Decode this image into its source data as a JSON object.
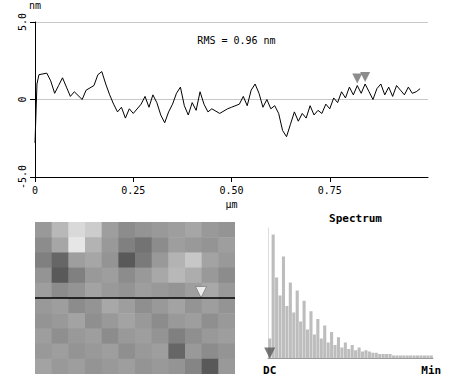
{
  "chart_data": [
    {
      "type": "line",
      "annotation": "RMS = 0.96 nm",
      "y_label": "nm",
      "x_label": "μm",
      "color": "#000000",
      "x": [
        0,
        0.005,
        0.01,
        0.03,
        0.04,
        0.05,
        0.06,
        0.07,
        0.08,
        0.09,
        0.1,
        0.12,
        0.13,
        0.15,
        0.16,
        0.17,
        0.18,
        0.19,
        0.2,
        0.21,
        0.22,
        0.23,
        0.24,
        0.25,
        0.27,
        0.28,
        0.29,
        0.3,
        0.31,
        0.32,
        0.33,
        0.34,
        0.35,
        0.36,
        0.37,
        0.38,
        0.39,
        0.4,
        0.41,
        0.42,
        0.43,
        0.44,
        0.45,
        0.47,
        0.49,
        0.5,
        0.52,
        0.53,
        0.54,
        0.55,
        0.56,
        0.57,
        0.58,
        0.59,
        0.6,
        0.61,
        0.62,
        0.63,
        0.64,
        0.65,
        0.66,
        0.67,
        0.68,
        0.69,
        0.7,
        0.71,
        0.72,
        0.73,
        0.74,
        0.75,
        0.76,
        0.77,
        0.78,
        0.79,
        0.8,
        0.81,
        0.82,
        0.83,
        0.84,
        0.85,
        0.86,
        0.87,
        0.88,
        0.89,
        0.9,
        0.91,
        0.92,
        0.93,
        0.94,
        0.95,
        0.96,
        0.97,
        0.98
      ],
      "values": [
        -2.8,
        1.0,
        1.6,
        1.7,
        1.2,
        0.4,
        0.9,
        1.4,
        0.8,
        0.2,
        0.5,
        0.0,
        0.6,
        0.9,
        1.6,
        1.8,
        1.0,
        0.3,
        -0.3,
        -0.8,
        -0.5,
        -1.2,
        -0.6,
        -0.9,
        -0.3,
        0.2,
        -0.5,
        0.3,
        -0.2,
        -1.0,
        -1.5,
        -0.8,
        -0.3,
        0.4,
        0.8,
        -0.4,
        -1.0,
        -0.2,
        -0.7,
        0.5,
        -0.3,
        -0.8,
        -0.6,
        -0.9,
        -0.6,
        -0.5,
        -0.3,
        0.2,
        -0.4,
        0.6,
        1.0,
        0.4,
        -0.5,
        0.0,
        -0.6,
        -0.4,
        -0.9,
        -2.0,
        -2.4,
        -1.6,
        -0.8,
        -1.4,
        -0.9,
        -1.2,
        -0.4,
        -1.0,
        -0.7,
        -0.9,
        -0.3,
        -0.6,
        0.1,
        -0.2,
        0.5,
        0.1,
        0.8,
        0.3,
        0.9,
        0.4,
        1.0,
        0.5,
        0.0,
        0.7,
        1.0,
        0.3,
        0.8,
        0.2,
        0.9,
        0.6,
        0.3,
        0.8,
        0.4,
        0.5,
        0.7
      ],
      "xlim": [
        0,
        1
      ],
      "xticks": [
        0,
        0.25,
        {
          "value": 0.5,
          "label": "0.50"
        },
        0.75
      ],
      "ylim": [
        -5,
        5
      ],
      "yticks": [
        {
          "value": -5,
          "label": "-5.0"
        },
        0,
        {
          "value": 5,
          "label": "5.0"
        }
      ],
      "grid": true,
      "cursors": {
        "x": [
          0.82,
          0.84
        ],
        "y": [
          0.9,
          1.0
        ]
      }
    },
    {
      "type": "heatmap",
      "cells": [
        [
          60,
          72,
          85,
          80,
          62,
          55,
          58,
          60,
          62,
          65,
          60,
          58
        ],
        [
          55,
          65,
          90,
          70,
          60,
          50,
          45,
          55,
          62,
          60,
          58,
          62
        ],
        [
          50,
          40,
          62,
          65,
          58,
          35,
          48,
          60,
          70,
          78,
          64,
          60
        ],
        [
          58,
          35,
          50,
          60,
          62,
          55,
          60,
          66,
          72,
          68,
          60,
          55
        ],
        [
          62,
          55,
          58,
          64,
          60,
          58,
          62,
          60,
          58,
          62,
          66,
          60
        ],
        [
          60,
          62,
          55,
          58,
          66,
          62,
          56,
          60,
          64,
          58,
          62,
          58
        ],
        [
          58,
          60,
          64,
          56,
          60,
          64,
          60,
          55,
          60,
          62,
          56,
          60
        ],
        [
          62,
          56,
          60,
          62,
          55,
          60,
          62,
          58,
          50,
          56,
          60,
          62
        ],
        [
          60,
          62,
          58,
          60,
          62,
          56,
          60,
          62,
          40,
          60,
          55,
          58
        ],
        [
          64,
          60,
          62,
          58,
          60,
          62,
          58,
          60,
          58,
          52,
          35,
          60
        ]
      ],
      "zlim": [
        0,
        100
      ],
      "xlim": [
        0,
        1
      ],
      "ylim": [
        0,
        1
      ],
      "tick_labels": false,
      "section_y": 0.5,
      "cursor": {
        "x": 0.83,
        "y": 0.5
      }
    },
    {
      "type": "bar",
      "title": "Spectrum",
      "categories": [
        "DC",
        null,
        null,
        null,
        null,
        null,
        null,
        null,
        null,
        null,
        null,
        null,
        null,
        null,
        null,
        null,
        null,
        null,
        null,
        null,
        null,
        null,
        null,
        null,
        null,
        null,
        null,
        null,
        null,
        null,
        null,
        null,
        null,
        null,
        null,
        null,
        null,
        null,
        null,
        null,
        null,
        null,
        null,
        null,
        null,
        null,
        null,
        "Min"
      ],
      "values": [
        15,
        95,
        62,
        48,
        78,
        40,
        58,
        35,
        52,
        28,
        44,
        22,
        36,
        18,
        30,
        15,
        25,
        12,
        20,
        10,
        16,
        8,
        12,
        7,
        10,
        6,
        8,
        5,
        6,
        5,
        4,
        4,
        3,
        3,
        3,
        3,
        2,
        2,
        2,
        2,
        2,
        2,
        2,
        2,
        2,
        2,
        2,
        2
      ],
      "color": "#bdbdbd",
      "ylim": [
        0,
        100
      ],
      "tick_labels": "x",
      "cursor": "DC"
    }
  ]
}
